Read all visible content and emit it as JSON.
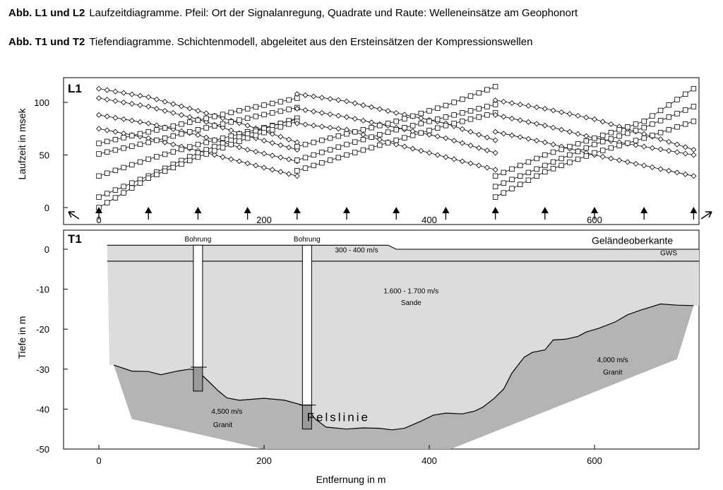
{
  "captions": [
    {
      "bold": "Abb. L1 und L2",
      "text": "Laufzeitdiagramme. Pfeil: Ort der Signalanregung, Quadrate und Raute: Welleneinsätze am Geophonort"
    },
    {
      "bold": "Abb. T1 und T2",
      "text": "Tiefendiagramme. Schichtenmodell, abgeleitet aus den Ersteinsätzen der Kompressionswellen"
    }
  ],
  "colors": {
    "light_layer": "#dcdcdc",
    "dark_layer": "#b4b4b4",
    "line": "#000000"
  },
  "chart_data": [
    {
      "id": "L1",
      "type": "line",
      "title": "L1",
      "xlabel": "",
      "ylabel": "Laufzeit in msek",
      "xlim": [
        -40,
        720
      ],
      "ylim": [
        0,
        120
      ],
      "xticks": [
        "0",
        "200",
        "400",
        "600"
      ],
      "yticks": [
        "0",
        "50",
        "100"
      ],
      "grid": false,
      "shot_points": [
        0,
        60,
        120,
        180,
        240,
        300,
        360,
        420,
        480,
        540,
        600,
        660,
        720
      ],
      "geophone_spacing": 10,
      "series": [
        {
          "marker": "diamond",
          "x": [
            0,
            60,
            120,
            180,
            240
          ],
          "y": [
            113,
            105,
            92,
            78,
            62
          ]
        },
        {
          "marker": "diamond",
          "x": [
            0,
            60,
            120,
            180,
            240
          ],
          "y": [
            104,
            96,
            84,
            68,
            55
          ]
        },
        {
          "marker": "diamond",
          "x": [
            0,
            60,
            120,
            180,
            240
          ],
          "y": [
            88,
            80,
            69,
            55,
            44
          ]
        },
        {
          "marker": "diamond",
          "x": [
            0,
            60,
            120,
            180,
            240
          ],
          "y": [
            75,
            66,
            54,
            42,
            30
          ]
        },
        {
          "marker": "square",
          "x": [
            0,
            60,
            120,
            180,
            240
          ],
          "y": [
            61,
            72,
            83,
            94,
            104
          ]
        },
        {
          "marker": "square",
          "x": [
            0,
            60,
            120,
            180,
            240
          ],
          "y": [
            51,
            62,
            74,
            85,
            95
          ]
        },
        {
          "marker": "square",
          "x": [
            0,
            60,
            120,
            180,
            240
          ],
          "y": [
            30,
            46,
            60,
            72,
            84
          ]
        },
        {
          "marker": "square",
          "x": [
            0,
            60,
            120,
            180,
            240
          ],
          "y": [
            10,
            30,
            52,
            70,
            85
          ]
        },
        {
          "marker": "square",
          "x": [
            0,
            60,
            120,
            180,
            240
          ],
          "y": [
            0,
            28,
            48,
            66,
            82
          ]
        },
        {
          "marker": "diamond",
          "x": [
            240,
            300,
            360,
            420,
            480
          ],
          "y": [
            108,
            101,
            90,
            80,
            64
          ]
        },
        {
          "marker": "diamond",
          "x": [
            240,
            300,
            360,
            420,
            480
          ],
          "y": [
            94,
            86,
            76,
            66,
            52
          ]
        },
        {
          "marker": "diamond",
          "x": [
            240,
            300,
            360,
            420,
            480
          ],
          "y": [
            80,
            74,
            60,
            48,
            36
          ]
        },
        {
          "marker": "square",
          "x": [
            240,
            300,
            360,
            420,
            480
          ],
          "y": [
            58,
            70,
            82,
            97,
            115
          ]
        },
        {
          "marker": "square",
          "x": [
            240,
            300,
            360,
            420,
            480
          ],
          "y": [
            45,
            60,
            74,
            86,
            98
          ]
        },
        {
          "marker": "square",
          "x": [
            240,
            300,
            360,
            420,
            480
          ],
          "y": [
            35,
            50,
            64,
            78,
            90
          ]
        },
        {
          "marker": "diamond",
          "x": [
            480,
            540,
            600,
            660,
            720
          ],
          "y": [
            102,
            94,
            84,
            70,
            55
          ]
        },
        {
          "marker": "diamond",
          "x": [
            480,
            540,
            600,
            660,
            720
          ],
          "y": [
            88,
            78,
            66,
            58,
            50
          ]
        },
        {
          "marker": "diamond",
          "x": [
            480,
            540,
            600,
            660,
            720
          ],
          "y": [
            72,
            62,
            50,
            40,
            30
          ]
        },
        {
          "marker": "square",
          "x": [
            480,
            540,
            600,
            660,
            720
          ],
          "y": [
            30,
            50,
            66,
            82,
            113
          ]
        },
        {
          "marker": "square",
          "x": [
            480,
            540,
            600,
            660,
            720
          ],
          "y": [
            20,
            40,
            60,
            76,
            96
          ]
        },
        {
          "marker": "square",
          "x": [
            480,
            540,
            600,
            660,
            720
          ],
          "y": [
            10,
            34,
            52,
            66,
            82
          ]
        }
      ]
    },
    {
      "id": "T1",
      "type": "area",
      "title": "T1",
      "xlabel": "Entfernung in m",
      "ylabel": "Tiefe in m",
      "xlim": [
        -40,
        730
      ],
      "ylim": [
        -50,
        3
      ],
      "xticks": [
        "0",
        "200",
        "400",
        "600"
      ],
      "yticks": [
        "0",
        "-10",
        "-20",
        "-30",
        "-40",
        "-50"
      ],
      "grid": false,
      "surface": {
        "x": [
          10,
          350,
          360,
          720
        ],
        "y": [
          1,
          1,
          0,
          0
        ]
      },
      "gws": {
        "x": [
          10,
          720
        ],
        "y": [
          -3,
          -3
        ]
      },
      "rock_line": {
        "x": [
          18,
          40,
          60,
          75,
          95,
          110,
          118,
          130,
          145,
          155,
          170,
          200,
          225,
          250,
          262,
          275,
          300,
          320,
          340,
          355,
          370,
          390,
          405,
          420,
          440,
          455,
          465,
          478,
          490,
          500,
          515,
          525,
          540,
          550,
          565,
          580,
          590,
          605,
          625,
          640,
          655,
          680,
          700,
          720
        ],
        "y": [
          -29,
          -30.5,
          -30.6,
          -31.4,
          -30.5,
          -30,
          -30.2,
          -32.5,
          -35.5,
          -37.2,
          -37.8,
          -37.3,
          -37.8,
          -39.2,
          -42.5,
          -44.5,
          -45,
          -44.7,
          -44.8,
          -45.2,
          -44.8,
          -43,
          -41.5,
          -41,
          -41.2,
          -40.5,
          -39.5,
          -37.4,
          -35,
          -31,
          -27,
          -25.8,
          -25.2,
          -22.7,
          -22.5,
          -21.8,
          -20.7,
          -19.8,
          -18.2,
          -16.4,
          -15.3,
          -13.7,
          -14,
          -14.1
        ]
      },
      "boreholes": [
        {
          "label": "Bohrung",
          "x": 120,
          "depth": -35.5,
          "marker_depth": -29.5
        },
        {
          "label": "Bohrung",
          "x": 252,
          "depth": -45,
          "marker_depth": -39
        }
      ],
      "annotations": [
        {
          "text": "Geländeoberkante",
          "x": 695,
          "y": 1.3
        },
        {
          "text": "GWS",
          "x": 700,
          "y": -1.5
        },
        {
          "text": "300 - 400 m/s",
          "x": 312,
          "y": -0.8
        },
        {
          "text": "1.600 - 1.700 m/s",
          "x": 378,
          "y": -11
        },
        {
          "text": "Sande",
          "x": 378,
          "y": -14
        },
        {
          "text": "4,500 m/s",
          "x": 155,
          "y": -41.2
        },
        {
          "text": "Granit",
          "x": 150,
          "y": -44.5
        },
        {
          "text": "4,000 m/s",
          "x": 622,
          "y": -28.3
        },
        {
          "text": "Granit",
          "x": 622,
          "y": -31.4
        },
        {
          "text": "Felslinie",
          "x": 290,
          "y": -43
        }
      ]
    }
  ]
}
